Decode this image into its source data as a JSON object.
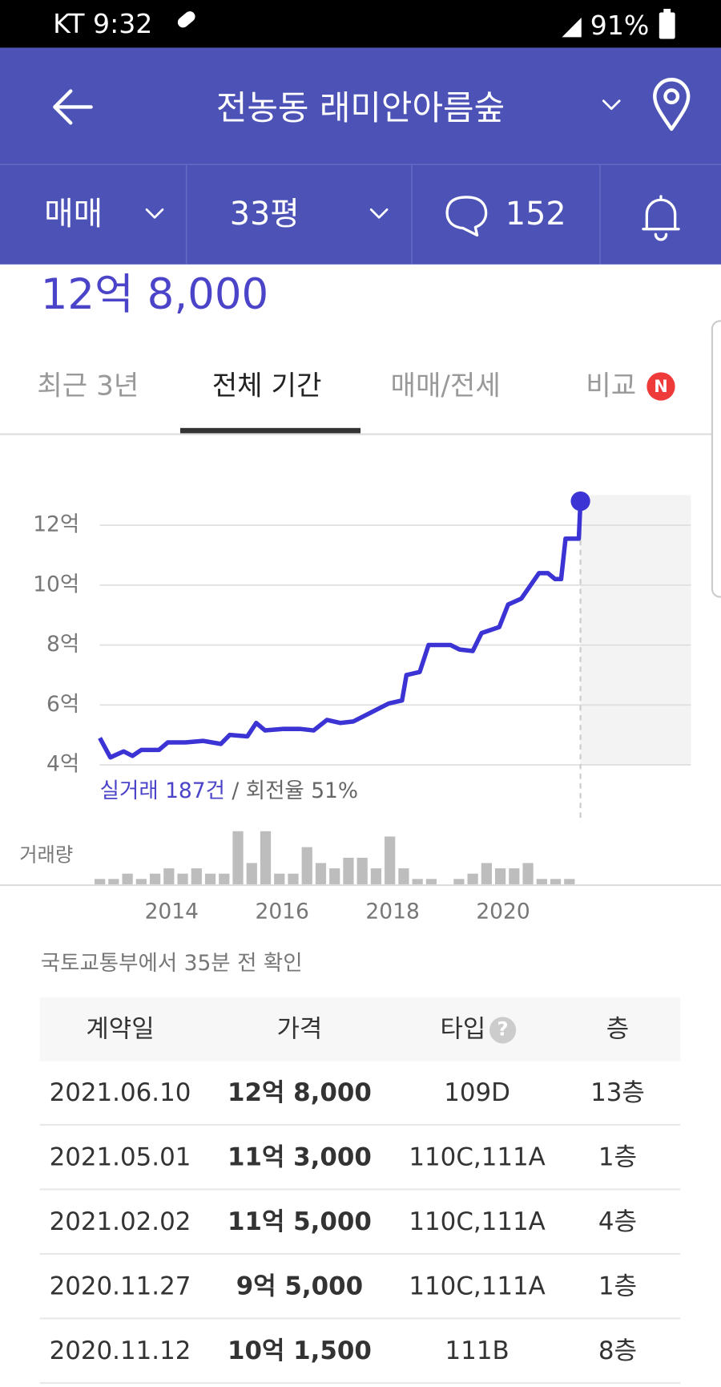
{
  "status_bar": {
    "carrier_time": "KT 9:32",
    "battery": "91%"
  },
  "header": {
    "title": "전농동 래미안아름숲"
  },
  "filters": {
    "trade": "매매",
    "size": "33평",
    "comments": "152"
  },
  "price": "12억 8,000",
  "tabs": {
    "recent": "최근 3년",
    "all": "전체 기간",
    "compare_type": "매매/전세",
    "compare": "비교",
    "badge": "N"
  },
  "chart_data": {
    "type": "line",
    "xlim": [
      2012.7,
      2023.4
    ],
    "xticks": [
      2014,
      2016,
      2018,
      2020
    ],
    "ylim": [
      4,
      13
    ],
    "yticks": [
      {
        "value": 4,
        "label": "4억"
      },
      {
        "value": 6,
        "label": "6억"
      },
      {
        "value": 8,
        "label": "8억"
      },
      {
        "value": 10,
        "label": "10억"
      },
      {
        "value": 12,
        "label": "12억"
      }
    ],
    "grid": true,
    "series": [
      {
        "color": "#3b33d4",
        "x": [
          2012.7,
          2012.89,
          2013.13,
          2013.29,
          2013.45,
          2013.77,
          2013.93,
          2014.25,
          2014.57,
          2014.89,
          2015.05,
          2015.37,
          2015.53,
          2015.69,
          2016.01,
          2016.33,
          2016.57,
          2016.81,
          2017.05,
          2017.29,
          2017.61,
          2017.93,
          2018.17,
          2018.25,
          2018.49,
          2018.65,
          2019.05,
          2019.21,
          2019.45,
          2019.61,
          2019.93,
          2020.09,
          2020.33,
          2020.65,
          2020.81,
          2020.94,
          2021.05,
          2021.13,
          2021.37,
          2021.4
        ],
        "values": [
          4.9,
          4.25,
          4.45,
          4.3,
          4.5,
          4.5,
          4.75,
          4.75,
          4.8,
          4.7,
          5.0,
          4.95,
          5.4,
          5.15,
          5.2,
          5.2,
          5.15,
          5.5,
          5.4,
          5.45,
          5.75,
          6.05,
          6.15,
          7.0,
          7.1,
          8.0,
          8.0,
          7.85,
          7.8,
          8.4,
          8.6,
          9.35,
          9.55,
          10.4,
          10.4,
          10.2,
          10.2,
          11.55,
          11.55,
          12.8
        ]
      }
    ],
    "annotation": {
      "trades": "실거래 187건",
      "turnover": "/ 회전율 51%"
    },
    "volume": {
      "label": "거래량",
      "color": "#bdbdbd",
      "ylim": [
        0,
        10
      ],
      "x": [
        2012.7,
        2012.95,
        2013.2,
        2013.45,
        2013.7,
        2013.95,
        2014.2,
        2014.45,
        2014.7,
        2014.95,
        2015.2,
        2015.45,
        2015.7,
        2015.95,
        2016.2,
        2016.45,
        2016.7,
        2016.95,
        2017.2,
        2017.45,
        2017.7,
        2017.95,
        2018.2,
        2018.45,
        2018.7,
        2018.95,
        2019.2,
        2019.45,
        2019.7,
        2019.95,
        2020.2,
        2020.45,
        2020.7,
        2020.95,
        2021.2
      ],
      "values": [
        1,
        1,
        2,
        1,
        2,
        3,
        2,
        3,
        2,
        2,
        10,
        4,
        10,
        2,
        2,
        7,
        4,
        3,
        5,
        5,
        3,
        9,
        3,
        1,
        1,
        0,
        1,
        2,
        4,
        3,
        3,
        4,
        1,
        1,
        1
      ]
    }
  },
  "source": "국토교통부에서 35분 전 확인",
  "table": {
    "columns": [
      "계약일",
      "가격",
      "타입",
      "층"
    ],
    "help_icon": "?",
    "rows": [
      [
        "2021.06.10",
        "12억 8,000",
        "109D",
        "13층"
      ],
      [
        "2021.05.01",
        "11억 3,000",
        "110C,111A",
        "1층"
      ],
      [
        "2021.02.02",
        "11억 5,000",
        "110C,111A",
        "4층"
      ],
      [
        "2020.11.27",
        "9억 5,000",
        "110C,111A",
        "1층"
      ],
      [
        "2020.11.12",
        "10억 1,500",
        "111B",
        "8층"
      ]
    ]
  }
}
